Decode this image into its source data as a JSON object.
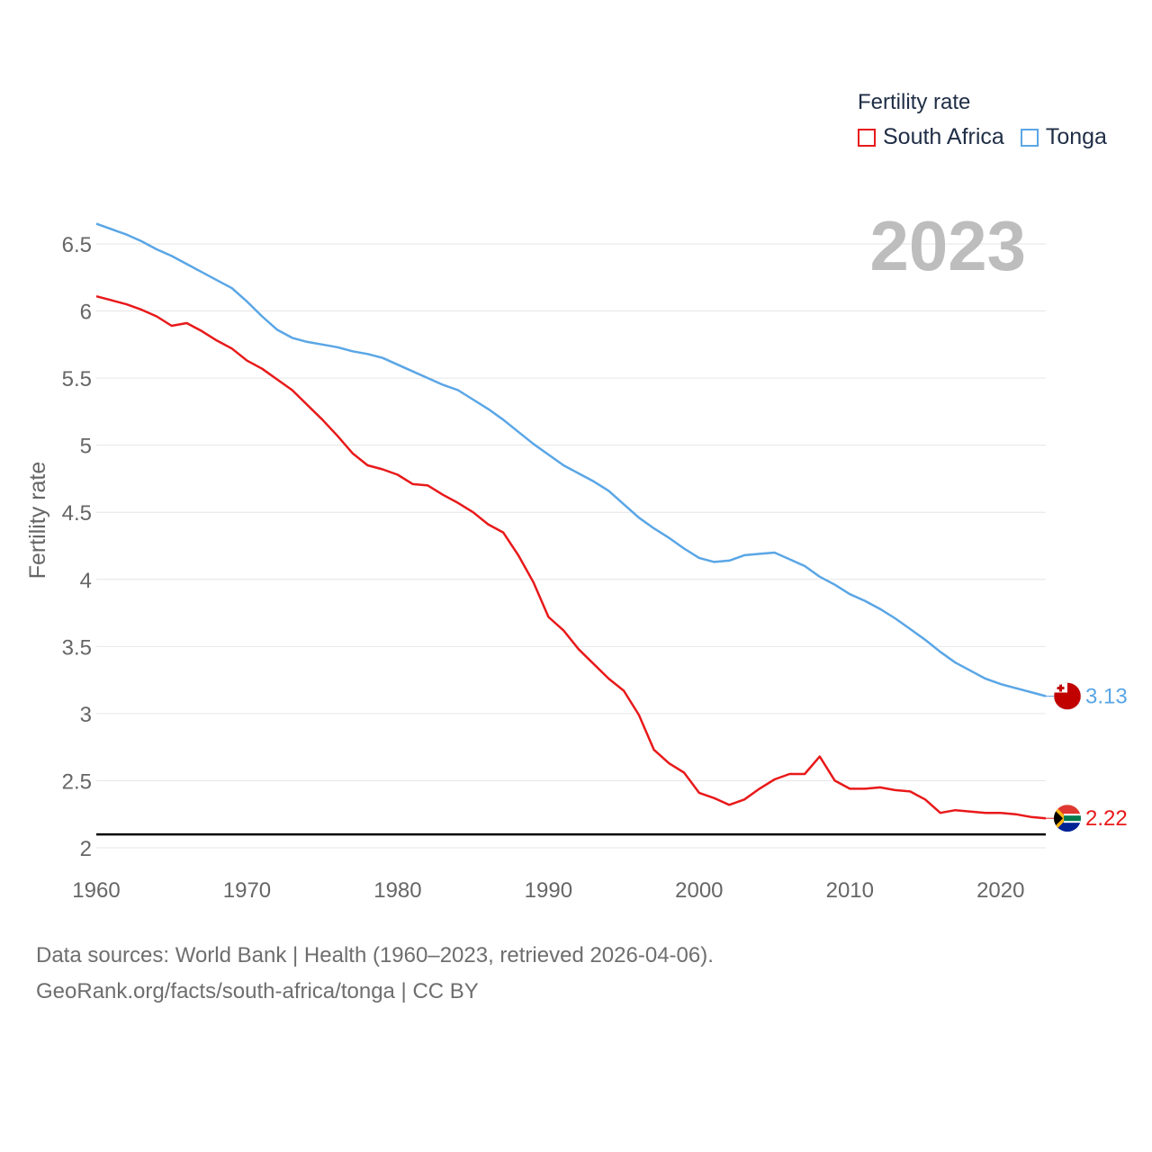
{
  "legend": {
    "title": "Fertility rate",
    "items": [
      {
        "label": "South Africa",
        "color": "#e8191a"
      },
      {
        "label": "Tonga",
        "color": "#5aa6e6"
      }
    ]
  },
  "year_label": "2023",
  "footer": {
    "line1": "Data sources: World Bank | Health (1960–2023, retrieved 2026-04-06).",
    "line2": "GeoRank.org/facts/south-africa/tonga | CC BY"
  },
  "chart_data": {
    "type": "line",
    "ylabel": "Fertility rate",
    "xlabel": "",
    "xlim": [
      1960,
      2023
    ],
    "ylim": [
      2,
      6.7
    ],
    "x_ticks": [
      1960,
      1970,
      1980,
      1990,
      2000,
      2010,
      2020
    ],
    "y_ticks": [
      2,
      2.5,
      3,
      3.5,
      4,
      4.5,
      5,
      5.5,
      6,
      6.5
    ],
    "y_tick_labels": [
      "2",
      "2.5",
      "3",
      "3.5",
      "4",
      "4.5",
      "5",
      "5.5",
      "6",
      "6.5"
    ],
    "reference_line": 2.1,
    "x": [
      1960,
      1961,
      1962,
      1963,
      1964,
      1965,
      1966,
      1967,
      1968,
      1969,
      1970,
      1971,
      1972,
      1973,
      1974,
      1975,
      1976,
      1977,
      1978,
      1979,
      1980,
      1981,
      1982,
      1983,
      1984,
      1985,
      1986,
      1987,
      1988,
      1989,
      1990,
      1991,
      1992,
      1993,
      1994,
      1995,
      1996,
      1997,
      1998,
      1999,
      2000,
      2001,
      2002,
      2003,
      2004,
      2005,
      2006,
      2007,
      2008,
      2009,
      2010,
      2011,
      2012,
      2013,
      2014,
      2015,
      2016,
      2017,
      2018,
      2019,
      2020,
      2021,
      2022,
      2023
    ],
    "series": [
      {
        "name": "South Africa",
        "color": "#e8191a",
        "end_label": "2.22",
        "values": [
          6.11,
          6.08,
          6.05,
          6.01,
          5.96,
          5.89,
          5.91,
          5.85,
          5.78,
          5.72,
          5.63,
          5.57,
          5.49,
          5.41,
          5.3,
          5.19,
          5.07,
          4.94,
          4.85,
          4.82,
          4.78,
          4.71,
          4.7,
          4.63,
          4.57,
          4.5,
          4.41,
          4.35,
          4.18,
          3.98,
          3.72,
          3.62,
          3.48,
          3.37,
          3.26,
          3.17,
          2.99,
          2.73,
          2.63,
          2.56,
          2.41,
          2.37,
          2.32,
          2.36,
          2.44,
          2.51,
          2.55,
          2.55,
          2.68,
          2.5,
          2.44,
          2.44,
          2.45,
          2.43,
          2.42,
          2.36,
          2.26,
          2.28,
          2.27,
          2.26,
          2.26,
          2.25,
          2.23,
          2.22
        ]
      },
      {
        "name": "Tonga",
        "color": "#5aa6e6",
        "end_label": "3.13",
        "values": [
          6.65,
          6.61,
          6.57,
          6.52,
          6.46,
          6.41,
          6.35,
          6.29,
          6.23,
          6.17,
          6.07,
          5.96,
          5.86,
          5.8,
          5.77,
          5.75,
          5.73,
          5.7,
          5.68,
          5.65,
          5.6,
          5.55,
          5.5,
          5.45,
          5.41,
          5.34,
          5.27,
          5.19,
          5.1,
          5.01,
          4.93,
          4.85,
          4.79,
          4.73,
          4.66,
          4.56,
          4.46,
          4.38,
          4.31,
          4.23,
          4.16,
          4.13,
          4.14,
          4.18,
          4.19,
          4.2,
          4.15,
          4.1,
          4.02,
          3.96,
          3.89,
          3.84,
          3.78,
          3.71,
          3.63,
          3.55,
          3.46,
          3.38,
          3.32,
          3.26,
          3.22,
          3.19,
          3.16,
          3.13
        ]
      }
    ]
  }
}
